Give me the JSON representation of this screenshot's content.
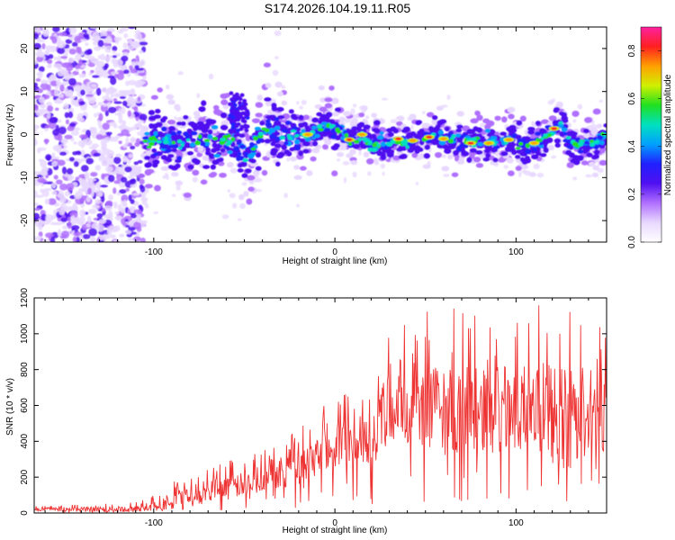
{
  "title": "S174.2026.104.19.11.R05",
  "colors": {
    "snr_line": "#ee3333",
    "axis": "#000000",
    "colormap": [
      "#ffffff",
      "#e8d8ff",
      "#b070ff",
      "#5010f0",
      "#2020ff",
      "#00a0ff",
      "#00e0c0",
      "#20e020",
      "#d0f000",
      "#ffa000",
      "#ff2020",
      "#ff20a0"
    ]
  },
  "chart_data": [
    {
      "type": "heatmap",
      "title": "",
      "xlabel": "Height of straight line (km)",
      "ylabel": "Frequency (Hz)",
      "xlim": [
        -166,
        150
      ],
      "ylim": [
        -25,
        25
      ],
      "xticks": [
        -100,
        0,
        100
      ],
      "yticks": [
        -20,
        -10,
        0,
        10,
        20
      ],
      "colorbar": {
        "label": "Normalized spectral amplitude",
        "range": [
          0.0,
          0.9
        ],
        "ticks": [
          "0.0",
          "0.2",
          "0.4",
          "0.6",
          "0.8"
        ]
      },
      "ridge": {
        "x": [
          -105,
          -95,
          -85,
          -75,
          -65,
          -55,
          -50,
          -45,
          -40,
          -30,
          -20,
          -15,
          -10,
          -5,
          0,
          5,
          10,
          15,
          20,
          25,
          30,
          35,
          40,
          45,
          50,
          55,
          60,
          65,
          70,
          75,
          80,
          85,
          90,
          95,
          100,
          105,
          110,
          115,
          120,
          125,
          130,
          135,
          140,
          145,
          150
        ],
        "y": [
          -2,
          -1,
          -2,
          -1,
          -2,
          -1,
          -6,
          -3,
          1,
          0,
          0,
          0,
          1,
          3,
          1,
          0,
          -2,
          0,
          -3,
          -2,
          -2,
          -1,
          -2,
          -1,
          -1,
          0,
          -1,
          -1,
          -2,
          -2,
          -1,
          -2,
          -2,
          -1,
          -2,
          -3,
          -2,
          -1,
          1,
          3,
          -2,
          -2,
          -2,
          -2,
          0
        ]
      }
    },
    {
      "type": "line",
      "title": "",
      "xlabel": "Height of straight line (km)",
      "ylabel": "SNR (10 * v/v)",
      "xlim": [
        -166,
        150
      ],
      "ylim": [
        0,
        1200
      ],
      "xticks": [
        -100,
        0,
        100
      ],
      "yticks": [
        0,
        200,
        400,
        600,
        800,
        1000,
        1200
      ],
      "envelope": {
        "x": [
          -166,
          -110,
          -100,
          -90,
          -80,
          -70,
          -60,
          -50,
          -40,
          -30,
          -20,
          -10,
          0,
          10,
          20,
          25,
          30,
          40,
          60,
          80,
          100,
          120,
          140,
          150
        ],
        "mean": [
          20,
          20,
          40,
          70,
          100,
          120,
          140,
          160,
          200,
          240,
          280,
          330,
          380,
          410,
          440,
          500,
          560,
          580,
          580,
          570,
          580,
          570,
          560,
          550
        ],
        "peak": [
          40,
          60,
          110,
          170,
          220,
          270,
          290,
          310,
          380,
          460,
          560,
          600,
          650,
          700,
          820,
          1000,
          1050,
          1080,
          1160,
          1100,
          1120,
          1200,
          1160,
          1000
        ]
      }
    }
  ]
}
